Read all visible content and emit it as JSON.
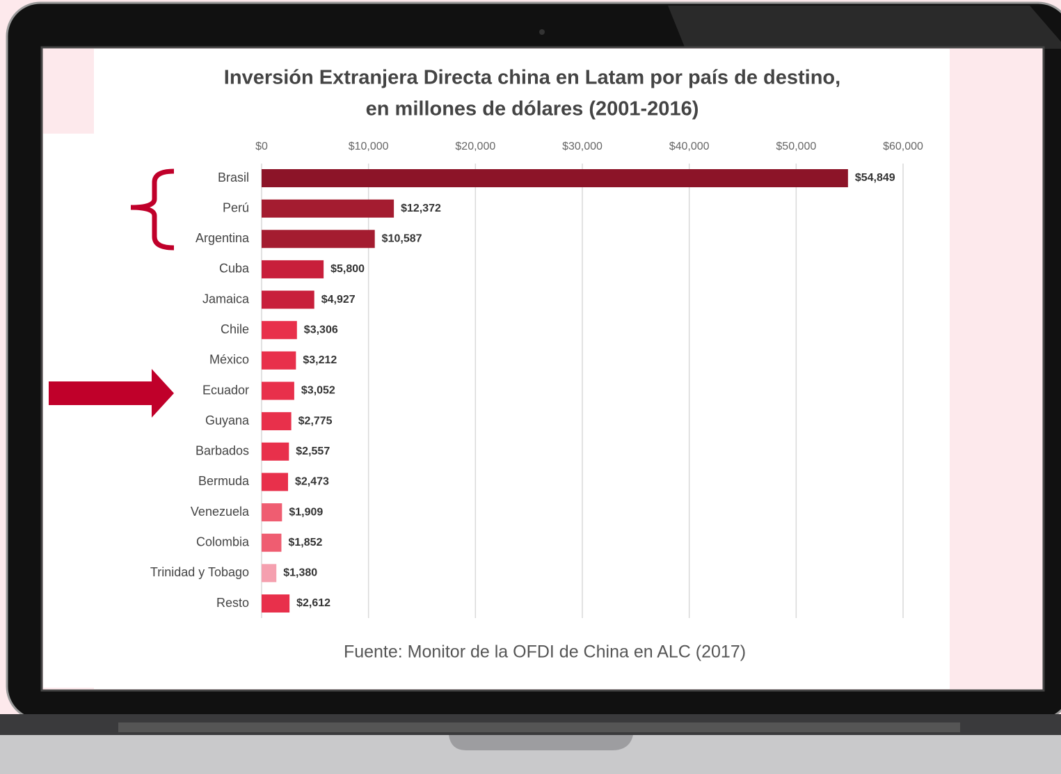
{
  "chart_data": {
    "type": "bar",
    "orientation": "horizontal",
    "title": [
      "Inversión Extranjera Directa china en Latam por país de destino,",
      "en millones de dólares (2001-2016)"
    ],
    "source": "Fuente: Monitor de la OFDI de China en ALC (2017)",
    "categories": [
      "Brasil",
      "Perú",
      "Argentina",
      "Cuba",
      "Jamaica",
      "Chile",
      "México",
      "Ecuador",
      "Guyana",
      "Barbados",
      "Bermuda",
      "Venezuela",
      "Colombia",
      "Trinidad y Tobago",
      "Resto"
    ],
    "values": [
      54849,
      12372,
      10587,
      5800,
      4927,
      3306,
      3212,
      3052,
      2775,
      2557,
      2473,
      1909,
      1852,
      1380,
      2612
    ],
    "value_labels": [
      "$54,849",
      "$12,372",
      "$10,587",
      "$5,800",
      "$4,927",
      "$3,306",
      "$3,212",
      "$3,052",
      "$2,775",
      "$2,557",
      "$2,473",
      "$1,909",
      "$1,852",
      "$1,380",
      "$2,612"
    ],
    "colors": [
      "#8c1428",
      "#a41c30",
      "#a41c30",
      "#c81f3b",
      "#c81f3b",
      "#e8304b",
      "#e8304b",
      "#e8304b",
      "#e8304b",
      "#e8304b",
      "#e8304b",
      "#ef5d71",
      "#ef5d71",
      "#f5a0af",
      "#e8304b"
    ],
    "xlim": [
      0,
      60000
    ],
    "xticks": [
      {
        "value": 0,
        "label": "$0"
      },
      {
        "value": 10000,
        "label": "$10,000"
      },
      {
        "value": 20000,
        "label": "$20,000"
      },
      {
        "value": 30000,
        "label": "$30,000"
      },
      {
        "value": 40000,
        "label": "$40,000"
      },
      {
        "value": 50000,
        "label": "$50,000"
      },
      {
        "value": 60000,
        "label": "$60,000"
      }
    ],
    "grid": true
  }
}
